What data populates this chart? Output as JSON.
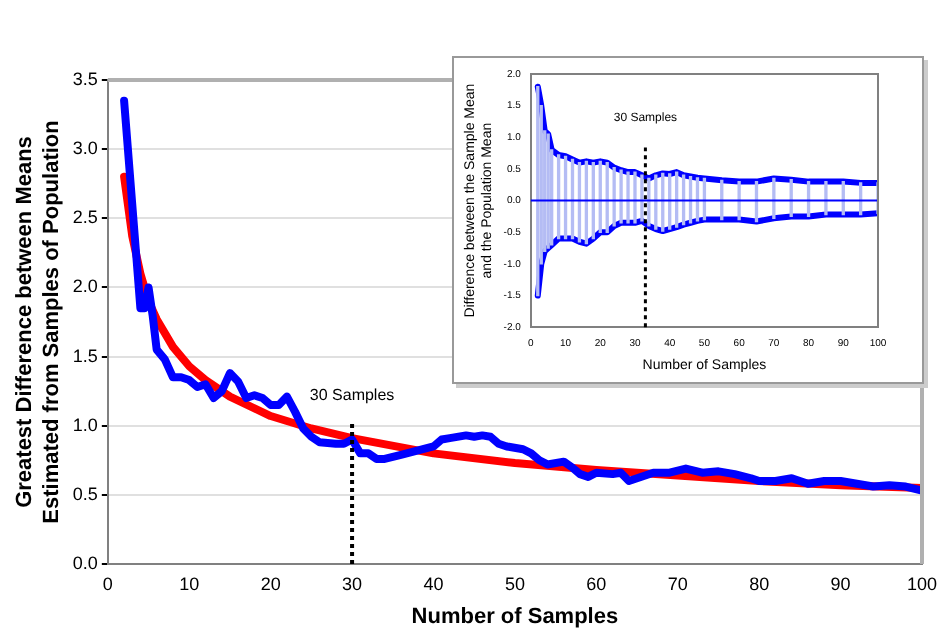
{
  "chart_data": [
    {
      "type": "line",
      "xlabel": "Number of Samples",
      "ylabel": "Greatest Difference between Means\nEstimated from Samples of Population",
      "xlim": [
        0,
        100
      ],
      "xticks": [
        0,
        10,
        20,
        30,
        40,
        50,
        60,
        70,
        80,
        90,
        100
      ],
      "ylim": [
        0,
        3.5
      ],
      "yticks": [
        {
          "value": 0,
          "label": "0.0"
        },
        {
          "value": 0.5,
          "label": "0.5"
        },
        {
          "value": 1,
          "label": "1.0"
        },
        {
          "value": 1.5,
          "label": "1.5"
        },
        {
          "value": 2,
          "label": "2.0"
        },
        {
          "value": 2.5,
          "label": "2.5"
        },
        {
          "value": 3,
          "label": "3.0"
        },
        {
          "value": 3.5,
          "label": "3.5"
        }
      ],
      "grid": "y",
      "legend": false,
      "marker": "none",
      "ref_lines": [
        {
          "axis": "x",
          "value": 30,
          "label": "30 Samples",
          "line_style": "dotted",
          "color": "#000000"
        }
      ],
      "series": [
        {
          "color": "#0000ff",
          "x": [
            2,
            3,
            4,
            4.5,
            5,
            5.5,
            6,
            7,
            8,
            9,
            10,
            11,
            12,
            13,
            14,
            15,
            16,
            17,
            18,
            19,
            20,
            21,
            22,
            23,
            24,
            25,
            26,
            28,
            29,
            30,
            31,
            32,
            33,
            34,
            36,
            38,
            40,
            41,
            42,
            44,
            45,
            46,
            47,
            48,
            49,
            51,
            52,
            53,
            54,
            56,
            57,
            58,
            59,
            60,
            62,
            63,
            64,
            65,
            67,
            69,
            71,
            73,
            75,
            77,
            79,
            80,
            82,
            84,
            86,
            88,
            90,
            92,
            94,
            96,
            98,
            100
          ],
          "values": [
            3.35,
            2.6,
            1.85,
            1.85,
            2.0,
            1.8,
            1.55,
            1.48,
            1.35,
            1.35,
            1.33,
            1.28,
            1.3,
            1.2,
            1.25,
            1.38,
            1.32,
            1.2,
            1.22,
            1.2,
            1.15,
            1.15,
            1.21,
            1.1,
            0.98,
            0.92,
            0.88,
            0.87,
            0.87,
            0.9,
            0.8,
            0.8,
            0.76,
            0.76,
            0.79,
            0.82,
            0.85,
            0.9,
            0.91,
            0.93,
            0.92,
            0.93,
            0.92,
            0.87,
            0.85,
            0.83,
            0.8,
            0.75,
            0.72,
            0.74,
            0.7,
            0.65,
            0.63,
            0.66,
            0.65,
            0.66,
            0.6,
            0.62,
            0.66,
            0.66,
            0.69,
            0.66,
            0.67,
            0.65,
            0.62,
            0.6,
            0.6,
            0.62,
            0.58,
            0.6,
            0.6,
            0.58,
            0.56,
            0.57,
            0.56,
            0.53
          ]
        },
        {
          "type": "line",
          "color": "#ff0000",
          "x": [
            2,
            3,
            4,
            5,
            6,
            8,
            10,
            12,
            15,
            20,
            25,
            30,
            40,
            50,
            60,
            70,
            80,
            90,
            100
          ],
          "values": [
            2.8,
            2.37,
            2.1,
            1.9,
            1.77,
            1.57,
            1.43,
            1.33,
            1.21,
            1.07,
            0.98,
            0.91,
            0.8,
            0.73,
            0.68,
            0.64,
            0.6,
            0.57,
            0.55
          ]
        }
      ]
    },
    {
      "type": "line",
      "xlabel": "Number of Samples",
      "ylabel": "Difference between the Sample Mean\nand the Population Mean",
      "xlim": [
        0,
        100
      ],
      "xticks": [
        0,
        10,
        20,
        30,
        40,
        50,
        60,
        70,
        80,
        90,
        100
      ],
      "ylim": [
        -2,
        2
      ],
      "yticks": [
        {
          "value": -2,
          "label": "-2.0"
        },
        {
          "value": -1.5,
          "label": "-1.5"
        },
        {
          "value": -1,
          "label": "-1.0"
        },
        {
          "value": -0.5,
          "label": "-0.5"
        },
        {
          "value": 0,
          "label": "0.0"
        },
        {
          "value": 0.5,
          "label": "0.5"
        },
        {
          "value": 1,
          "label": "1.0"
        },
        {
          "value": 1.5,
          "label": "1.5"
        },
        {
          "value": 2,
          "label": "2.0"
        }
      ],
      "grid": false,
      "legend": false,
      "marker": "none",
      "ref_lines": [
        {
          "axis": "x",
          "value": 33,
          "label": "30 Samples",
          "line_style": "dotted",
          "color": "#000000"
        },
        {
          "axis": "y",
          "value": 0,
          "line_style": "solid",
          "color": "#0000ff"
        }
      ],
      "x": [
        2,
        3,
        4,
        5,
        6,
        8,
        10,
        12,
        14,
        16,
        18,
        20,
        22,
        24,
        26,
        28,
        30,
        32,
        34,
        36,
        38,
        40,
        42,
        44,
        46,
        48,
        50,
        55,
        60,
        65,
        70,
        75,
        80,
        85,
        90,
        95,
        100
      ],
      "series": [
        {
          "type": "bar",
          "color": "#b4bcf4",
          "base": [
            -1.5,
            -1.0,
            -0.8,
            -0.75,
            -0.7,
            -0.6,
            -0.6,
            -0.6,
            -0.65,
            -0.68,
            -0.6,
            -0.5,
            -0.5,
            -0.4,
            -0.35,
            -0.35,
            -0.35,
            -0.32,
            -0.4,
            -0.45,
            -0.48,
            -0.45,
            -0.42,
            -0.38,
            -0.35,
            -0.32,
            -0.3,
            -0.3,
            -0.3,
            -0.33,
            -0.28,
            -0.25,
            -0.25,
            -0.22,
            -0.22,
            -0.22,
            -0.2
          ],
          "values": [
            3.3,
            2.5,
            1.9,
            1.8,
            1.5,
            1.32,
            1.3,
            1.25,
            1.25,
            1.3,
            1.2,
            1.12,
            1.1,
            0.92,
            0.83,
            0.8,
            0.8,
            0.72,
            0.75,
            0.85,
            0.91,
            0.87,
            0.87,
            0.78,
            0.73,
            0.68,
            0.65,
            0.62,
            0.6,
            0.63,
            0.63,
            0.58,
            0.55,
            0.52,
            0.52,
            0.5,
            0.48
          ]
        },
        {
          "color": "#0000ff",
          "values": [
            1.8,
            1.5,
            1.1,
            1.05,
            0.8,
            0.72,
            0.7,
            0.65,
            0.6,
            0.62,
            0.6,
            0.62,
            0.6,
            0.52,
            0.48,
            0.45,
            0.45,
            0.4,
            0.35,
            0.4,
            0.43,
            0.42,
            0.45,
            0.4,
            0.38,
            0.36,
            0.35,
            0.32,
            0.3,
            0.3,
            0.35,
            0.33,
            0.3,
            0.3,
            0.3,
            0.28,
            0.28
          ]
        },
        {
          "color": "#0000ff",
          "values": [
            -1.5,
            -1.0,
            -0.8,
            -0.75,
            -0.7,
            -0.6,
            -0.6,
            -0.6,
            -0.65,
            -0.68,
            -0.6,
            -0.5,
            -0.5,
            -0.4,
            -0.35,
            -0.35,
            -0.35,
            -0.32,
            -0.4,
            -0.45,
            -0.48,
            -0.45,
            -0.42,
            -0.38,
            -0.35,
            -0.32,
            -0.3,
            -0.3,
            -0.3,
            -0.33,
            -0.28,
            -0.25,
            -0.25,
            -0.22,
            -0.22,
            -0.22,
            -0.2
          ]
        }
      ]
    }
  ]
}
